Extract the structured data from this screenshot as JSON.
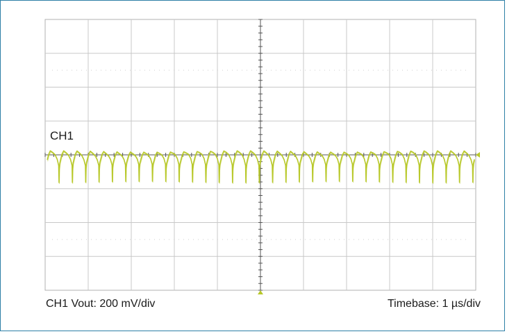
{
  "chart_data": {
    "type": "line",
    "title": "",
    "channel_label": "CH1",
    "vertical_scale_label": "CH1 Vout: 200 mV/div",
    "timebase_label": "Timebase: 1 µs/div",
    "grid": true,
    "divisions": {
      "x": 10,
      "y": 8
    },
    "units": {
      "x": "µs",
      "y": "mV"
    },
    "xlim": [
      0,
      10
    ],
    "ylim": [
      -800,
      800
    ],
    "trace_color": "#b8c82a",
    "grid_color": "#c8c8c8",
    "series": [
      {
        "name": "CH1",
        "ripple_period_us": 0.31,
        "ripple_count": 32,
        "waveform_cycle": [
          {
            "t": 0.0,
            "v": -30
          },
          {
            "t": 0.03,
            "v": 0
          },
          {
            "t": 0.07,
            "v": 20
          },
          {
            "t": 0.12,
            "v": 12
          },
          {
            "t": 0.18,
            "v": 0
          },
          {
            "t": 0.23,
            "v": -25
          },
          {
            "t": 0.265,
            "v": -60
          },
          {
            "t": 0.272,
            "v": -160
          },
          {
            "t": 0.278,
            "v": -80
          },
          {
            "t": 0.29,
            "v": -50
          },
          {
            "t": 0.31,
            "v": -30
          }
        ]
      }
    ]
  }
}
